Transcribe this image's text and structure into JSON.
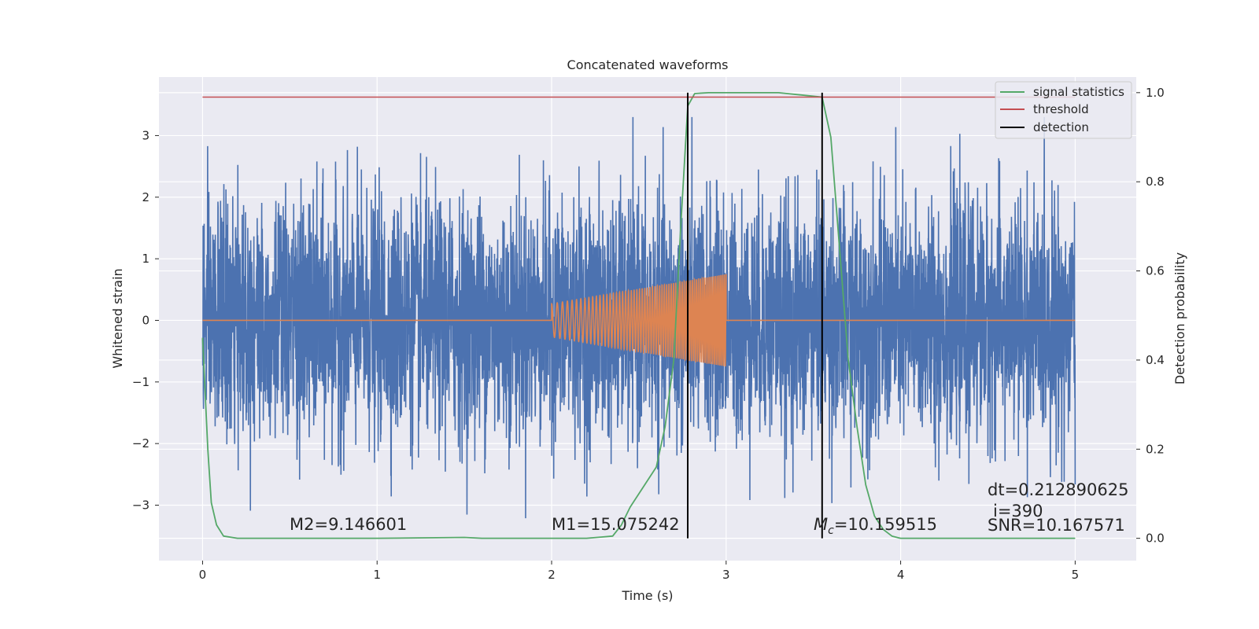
{
  "chart_data": {
    "type": "line",
    "title": "Concatenated waveforms",
    "xlabel": "Time (s)",
    "ylabel_left": "Whitened strain",
    "ylabel_right": "Detection probability",
    "xlim": [
      -0.25,
      5.35
    ],
    "ylim_left": [
      -3.9,
      3.95
    ],
    "ylim_right": [
      -0.05,
      1.035
    ],
    "x_ticks": [
      0,
      1,
      2,
      3,
      4,
      5
    ],
    "y_left_ticks": [
      -3,
      -2,
      -1,
      0,
      1,
      2,
      3
    ],
    "y_right_ticks": [
      0.0,
      0.2,
      0.4,
      0.6,
      0.8,
      1.0
    ],
    "x_tick_labels": [
      "0",
      "1",
      "2",
      "3",
      "4",
      "5"
    ],
    "y_left_tick_labels": [
      "−3",
      "−2",
      "−1",
      "0",
      "1",
      "2",
      "3"
    ],
    "y_right_tick_labels": [
      "0.0",
      "0.2",
      "0.4",
      "0.6",
      "0.8",
      "1.0"
    ],
    "grid": true,
    "legend_position": "top-right",
    "legend": [
      {
        "label": "signal statistics",
        "color": "#55a868"
      },
      {
        "label": "threshold",
        "color": "#c44e52"
      },
      {
        "label": "detection",
        "color": "#000000"
      }
    ],
    "series": [
      {
        "name": "whitened strain (noise)",
        "axis": "left",
        "color": "#4c72b0",
        "x_range": [
          0,
          5
        ],
        "approx_amplitude": 0.75,
        "approx_extreme": 3.3
      },
      {
        "name": "injected waveform",
        "axis": "left",
        "color": "#dd8452",
        "x_range": [
          2,
          3
        ],
        "amplitude_start": 0.27,
        "amplitude_end": 0.75
      },
      {
        "name": "signal statistics",
        "axis": "right",
        "color": "#55a868",
        "x": [
          0.0,
          0.03,
          0.05,
          0.08,
          0.12,
          0.2,
          0.5,
          1.0,
          1.5,
          1.6,
          1.8,
          2.0,
          2.2,
          2.35,
          2.4,
          2.45,
          2.5,
          2.6,
          2.65,
          2.7,
          2.74,
          2.78,
          2.82,
          2.9,
          3.0,
          3.3,
          3.55,
          3.6,
          3.65,
          3.7,
          3.75,
          3.8,
          3.85,
          3.9,
          3.95,
          4.0,
          4.1,
          4.5,
          5.0
        ],
        "y": [
          0.45,
          0.2,
          0.08,
          0.03,
          0.005,
          0.0,
          0.0,
          0.0,
          0.002,
          0.0,
          0.0,
          0.0,
          0.0,
          0.005,
          0.03,
          0.07,
          0.1,
          0.16,
          0.25,
          0.4,
          0.7,
          0.97,
          0.998,
          1.0,
          1.0,
          1.0,
          0.99,
          0.9,
          0.65,
          0.4,
          0.25,
          0.12,
          0.05,
          0.02,
          0.005,
          0.0,
          0.0,
          0.0,
          0.0
        ]
      },
      {
        "name": "threshold",
        "axis": "right",
        "color": "#c44e52",
        "x": [
          0,
          5
        ],
        "y": [
          0.99,
          0.99
        ]
      },
      {
        "name": "detection",
        "axis": "right",
        "color": "#000000",
        "vlines": [
          2.78,
          3.55
        ],
        "y_range": [
          0.0,
          1.0
        ]
      }
    ],
    "annotations": {
      "m2": "M2=9.146601",
      "m1": "M1=15.075242",
      "mc_symbol": "M",
      "mc_sub": "c",
      "mc_value": "=10.159515",
      "dt": "dt=0.212890625",
      "i": "i=390",
      "snr": "SNR=10.167571"
    },
    "colors": {
      "axes_bg": "#eaeaf2",
      "grid": "#ffffff",
      "noise": "#4c72b0",
      "waveform": "#dd8452",
      "stat": "#55a868",
      "threshold": "#c44e52",
      "detection": "#000000"
    }
  }
}
